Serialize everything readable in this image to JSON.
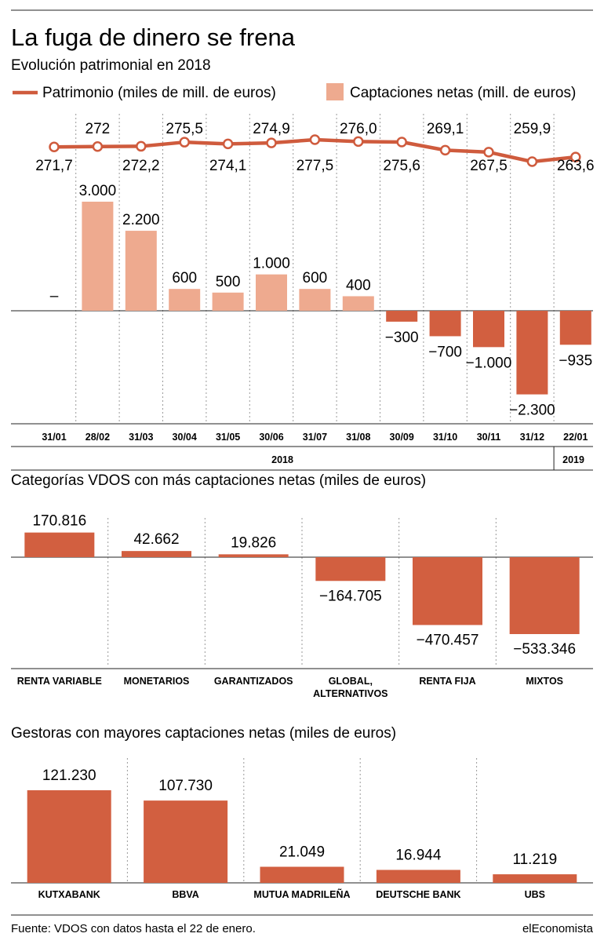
{
  "title": "La fuga de dinero se frena",
  "subtitle": "Evolución patrimonial en 2018",
  "legend": {
    "line_label": "Patrimonio (miles de mill. de euros)",
    "bar_label": "Captaciones netas (mill. de euros)"
  },
  "colors": {
    "line": "#cf5b3d",
    "bar_pos": "#eeaa8f",
    "bar_neg": "#d25f40",
    "bar_main": "#d25f40"
  },
  "chart_data": [
    {
      "type": "bar+line",
      "categories": [
        "31/01",
        "28/02",
        "31/03",
        "30/04",
        "31/05",
        "30/06",
        "31/07",
        "31/08",
        "30/09",
        "31/10",
        "30/11",
        "31/12",
        "22/01"
      ],
      "years": [
        {
          "label": "2018",
          "from": 0,
          "to": 11
        },
        {
          "label": "2019",
          "from": 12,
          "to": 12
        }
      ],
      "series": [
        {
          "name": "Patrimonio (miles de mill. de euros)",
          "type": "line",
          "values": [
            271.7,
            272,
            272.2,
            275.5,
            274.1,
            274.9,
            277.5,
            276.0,
            275.6,
            269.1,
            267.5,
            259.9,
            263.6
          ],
          "labels": [
            "271,7",
            "272",
            "272,2",
            "275,5",
            "274,1",
            "274,9",
            "277,5",
            "276,0",
            "275,6",
            "269,1",
            "267,5",
            "259,9",
            "263,6"
          ]
        },
        {
          "name": "Captaciones netas (mill. de euros)",
          "type": "bar",
          "values": [
            null,
            3000,
            2200,
            600,
            500,
            1000,
            600,
            400,
            -300,
            -700,
            -1000,
            -2300,
            -935
          ],
          "labels": [
            "–",
            "3.000",
            "2.200",
            "600",
            "500",
            "1.000",
            "600",
            "400",
            "−300",
            "−700",
            "−1.000",
            "−2.300",
            "−935"
          ]
        }
      ]
    },
    {
      "type": "bar",
      "title": "Categorías VDOS con más captaciones netas (miles de euros)",
      "categories": [
        "RENTA VARIABLE",
        "MONETARIOS",
        "GARANTIZADOS",
        "GLOBAL, ALTERNATIVOS",
        "RENTA FIJA",
        "MIXTOS"
      ],
      "values": [
        170816,
        42662,
        19826,
        -164705,
        -470457,
        -533346
      ],
      "labels": [
        "170.816",
        "42.662",
        "19.826",
        "−164.705",
        "−470.457",
        "−533.346"
      ]
    },
    {
      "type": "bar",
      "title": "Gestoras con mayores captaciones netas (miles de euros)",
      "categories": [
        "KUTXABANK",
        "BBVA",
        "MUTUA MADRILEÑA",
        "DEUTSCHE BANK",
        "UBS"
      ],
      "values": [
        121230,
        107730,
        21049,
        16944,
        11219
      ],
      "labels": [
        "121.230",
        "107.730",
        "21.049",
        "16.944",
        "11.219"
      ]
    }
  ],
  "footer": {
    "source": "Fuente: VDOS con datos hasta el 22 de enero.",
    "brand": "elEconomista"
  }
}
